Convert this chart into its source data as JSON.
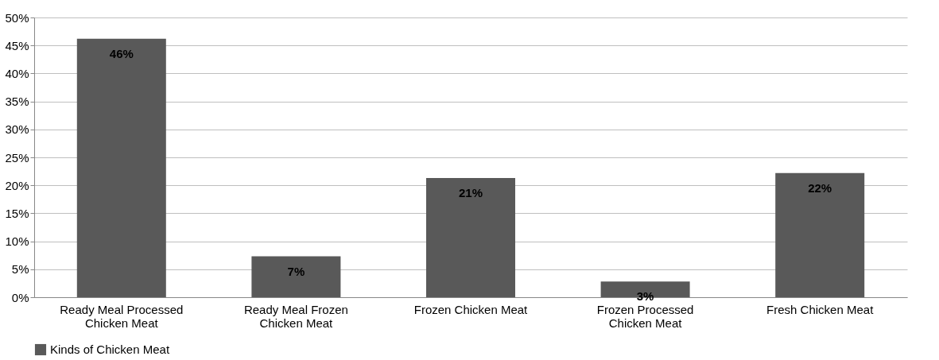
{
  "chart_data": {
    "type": "bar",
    "categories": [
      "Ready Meal Processed Chicken Meat",
      "Ready Meal Frozen Chicken Meat",
      "Frozen Chicken Meat",
      "Frozen Processed Chicken Meat",
      "Fresh Chicken Meat"
    ],
    "series": [
      {
        "name": "Kinds of Chicken Meat",
        "color": "#595959",
        "values": [
          46.2,
          7.3,
          21.3,
          2.8,
          22.2
        ]
      }
    ],
    "value_labels": [
      "46%",
      "7%",
      "21%",
      "3%",
      "22%"
    ],
    "ylim": [
      0,
      50
    ],
    "yticks": [
      {
        "value": 0,
        "label": "0%"
      },
      {
        "value": 5,
        "label": "5%"
      },
      {
        "value": 10,
        "label": "10%"
      },
      {
        "value": 15,
        "label": "15%"
      },
      {
        "value": 20,
        "label": "20%"
      },
      {
        "value": 25,
        "label": "25%"
      },
      {
        "value": 30,
        "label": "30%"
      },
      {
        "value": 35,
        "label": "35%"
      },
      {
        "value": 40,
        "label": "40%"
      },
      {
        "value": 45,
        "label": "45%"
      },
      {
        "value": 50,
        "label": "50%"
      }
    ],
    "grid": "y",
    "legend": "bottom"
  }
}
